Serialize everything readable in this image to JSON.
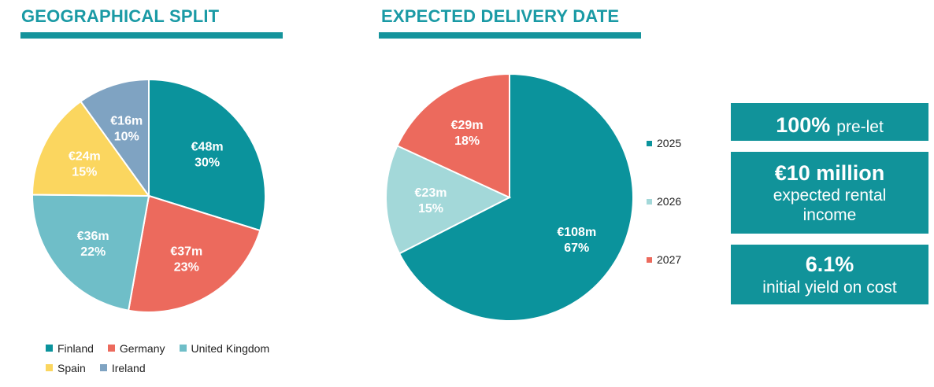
{
  "geographical": {
    "title": "GEOGRAPHICAL SPLIT",
    "legend": [
      {
        "name": "Finland",
        "color": "#0b939c"
      },
      {
        "name": "Germany",
        "color": "#ec6a5d"
      },
      {
        "name": "United Kingdom",
        "color": "#6fbec8"
      },
      {
        "name": "Spain",
        "color": "#fbd65f"
      },
      {
        "name": "Ireland",
        "color": "#7fa3c2"
      }
    ]
  },
  "delivery": {
    "title": "EXPECTED DELIVERY DATE",
    "legend": [
      {
        "name": "2025",
        "color": "#0b939c"
      },
      {
        "name": "2026",
        "color": "#a3d8d9"
      },
      {
        "name": "2027",
        "color": "#ec6a5d"
      }
    ]
  },
  "kpis": {
    "prelet_value": "100%",
    "prelet_label": "pre-let",
    "rental_value": "€10 million",
    "rental_label_1": "expected rental",
    "rental_label_2": "income",
    "yield_value": "6.1%",
    "yield_label": "initial yield on cost",
    "box_color": "#11939a"
  },
  "chart_data": [
    {
      "type": "pie",
      "title": "GEOGRAPHICAL SPLIT",
      "categories": [
        "Finland",
        "Germany",
        "United Kingdom",
        "Spain",
        "Ireland"
      ],
      "values": [
        48,
        37,
        36,
        24,
        16
      ],
      "value_labels": [
        "€48m",
        "€37m",
        "€36m",
        "€24m",
        "€16m"
      ],
      "percent_labels": [
        "30%",
        "23%",
        "22%",
        "15%",
        "10%"
      ],
      "colors": [
        "#0b939c",
        "#ec6a5d",
        "#6fbec8",
        "#fbd65f",
        "#7fa3c2"
      ],
      "legend_position": "bottom"
    },
    {
      "type": "pie",
      "title": "EXPECTED DELIVERY DATE",
      "categories": [
        "2025",
        "2026",
        "2027"
      ],
      "values": [
        108,
        23,
        29
      ],
      "value_labels": [
        "€108m",
        "€23m",
        "€29m"
      ],
      "percent_labels": [
        "67%",
        "15%",
        "18%"
      ],
      "colors": [
        "#0b939c",
        "#a3d8d9",
        "#ec6a5d"
      ],
      "legend_position": "right"
    }
  ]
}
